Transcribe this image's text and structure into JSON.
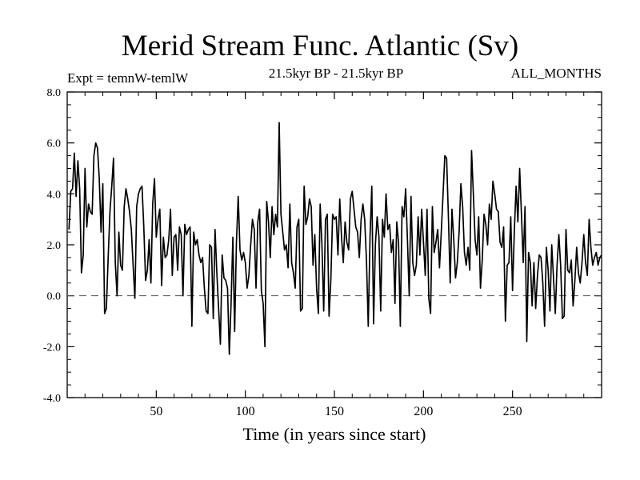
{
  "chart_data": {
    "type": "line",
    "title": "Merid Stream Func. Atlantic (Sv)",
    "subtitle": "21.5kyr BP - 21.5kyr BP",
    "experiment_label": "Expt = temnW-temlW",
    "period_label": "ALL_MONTHS",
    "xlabel": "Time (in years since start)",
    "ylabel": "",
    "xlim": [
      0,
      300
    ],
    "ylim": [
      -4.0,
      8.0
    ],
    "xticks": [
      50,
      100,
      150,
      200,
      250
    ],
    "yticks": [
      -4.0,
      -2.0,
      0.0,
      2.0,
      4.0,
      6.0,
      8.0
    ],
    "ytick_labels": [
      "-4.0",
      "-2.0",
      "0.0",
      "2.0",
      "4.0",
      "6.0",
      "8.0"
    ],
    "reference_line": {
      "y": 0.0,
      "style": "dashed"
    },
    "series": [
      {
        "name": "Expt = temnW-temlW",
        "x_start": 1,
        "x_step": 1,
        "values": [
          2.6,
          4.1,
          4.2,
          5.6,
          3.9,
          5.3,
          4.2,
          0.9,
          1.6,
          5.0,
          2.7,
          3.6,
          3.3,
          3.2,
          5.5,
          6.0,
          5.8,
          4.6,
          2.5,
          4.4,
          -0.7,
          -0.5,
          1.5,
          3.3,
          4.3,
          5.4,
          1.3,
          0.0,
          2.5,
          1.2,
          1.0,
          3.5,
          4.2,
          3.8,
          3.3,
          2.6,
          1.2,
          -0.1,
          3.5,
          4.0,
          4.2,
          4.3,
          2.7,
          0.6,
          1.0,
          2.2,
          0.5,
          3.6,
          4.6,
          2.3,
          3.0,
          3.4,
          0.4,
          2.3,
          1.5,
          1.6,
          2.2,
          3.4,
          0.8,
          2.3,
          2.4,
          1.0,
          2.7,
          2.4,
          0.0,
          2.8,
          2.4,
          2.6,
          2.7,
          -1.2,
          2.5,
          2.0,
          2.2,
          1.6,
          1.3,
          1.5,
          0.3,
          -0.6,
          -0.7,
          2.0,
          1.9,
          -0.9,
          2.6,
          0.9,
          -0.5,
          -1.9,
          1.6,
          0.7,
          0.6,
          0.3,
          -2.3,
          -0.3,
          2.3,
          -1.4,
          2.1,
          3.9,
          1.8,
          1.4,
          1.7,
          1.3,
          0.3,
          0.8,
          2.0,
          3.0,
          2.6,
          0.3,
          2.9,
          3.4,
          0.2,
          -0.3,
          -2.0,
          3.7,
          2.9,
          1.5,
          3.5,
          2.4,
          3.2,
          2.7,
          6.8,
          3.2,
          2.5,
          1.8,
          2.0,
          1.1,
          3.6,
          1.3,
          0.9,
          0.3,
          2.7,
          3.0,
          -0.6,
          -0.5,
          4.3,
          2.8,
          3.1,
          3.8,
          3.5,
          1.2,
          2.4,
          0.3,
          -0.7,
          3.6,
          2.0,
          -0.6,
          3.0,
          3.2,
          -0.8,
          0.6,
          3.2,
          3.0,
          3.1,
          1.6,
          3.8,
          2.3,
          1.3,
          2.9,
          2.1,
          1.8,
          3.8,
          4.1,
          3.4,
          2.7,
          2.5,
          1.5,
          3.0,
          3.6,
          3.0,
          1.4,
          -1.2,
          2.3,
          4.3,
          -1.1,
          2.0,
          3.1,
          2.3,
          -0.6,
          3.0,
          2.3,
          4.0,
          2.6,
          2.8,
          1.7,
          2.2,
          -0.3,
          2.9,
          2.1,
          -1.2,
          3.5,
          3.1,
          4.2,
          2.2,
          0.0,
          3.9,
          1.3,
          0.8,
          1.2,
          3.1,
          1.6,
          3.4,
          2.1,
          0.8,
          3.4,
          -0.1,
          -0.7,
          3.5,
          1.7,
          2.1,
          2.6,
          1.1,
          2.5,
          4.0,
          5.5,
          5.4,
          3.1,
          0.5,
          3.4,
          2.2,
          0.7,
          1.3,
          2.5,
          4.4,
          3.5,
          1.7,
          1.2,
          1.9,
          1.0,
          5.7,
          4.0,
          2.2,
          1.6,
          3.1,
          0.3,
          1.4,
          3.2,
          2.8,
          2.0,
          3.6,
          3.0,
          4.5,
          4.0,
          3.4,
          3.3,
          2.1,
          1.9,
          2.7,
          -1.0,
          1.2,
          1.3,
          3.1,
          0.2,
          2.5,
          4.3,
          2.9,
          5.0,
          3.2,
          1.3,
          3.5,
          -1.8,
          1.7,
          1.3,
          -0.4,
          1.3,
          -0.5,
          0.8,
          1.6,
          1.5,
          0.5,
          -1.2,
          1.9,
          1.0,
          -0.6,
          2.0,
          0.7,
          -0.7,
          1.2,
          2.4,
          1.2,
          -0.9,
          -0.8,
          2.6,
          1.0,
          0.9,
          1.4,
          -0.4,
          0.6,
          1.9,
          0.9,
          0.5,
          1.3,
          2.4,
          1.3,
          0.8,
          3.0,
          1.9,
          1.2,
          1.5,
          1.7,
          1.2,
          1.5,
          1.6
        ]
      }
    ]
  }
}
